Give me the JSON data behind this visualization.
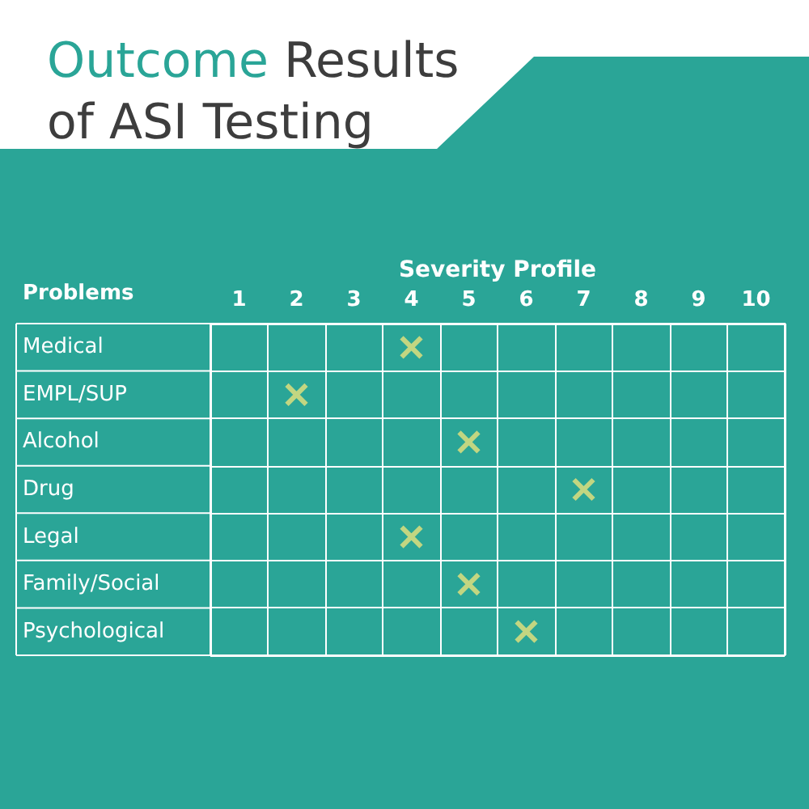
{
  "chart_data": {
    "type": "scatter",
    "title": "Outcome Results of ASI Testing",
    "xlabel": "Severity Profile",
    "ylabel": "Problems",
    "orientation": "horizontal",
    "categories": [
      "Medical",
      "EMPL/SUP",
      "Alcohol",
      "Drug",
      "Legal",
      "Family/Social",
      "Psychological"
    ],
    "values": [
      4,
      2,
      5,
      7,
      4,
      5,
      6
    ],
    "color": "#e9e27c",
    "xlim": [
      0.5,
      10.5
    ],
    "xticks": [
      1,
      2,
      3,
      4,
      5,
      6,
      7,
      8,
      9,
      10
    ],
    "marker": "cross",
    "grid": true
  }
}
